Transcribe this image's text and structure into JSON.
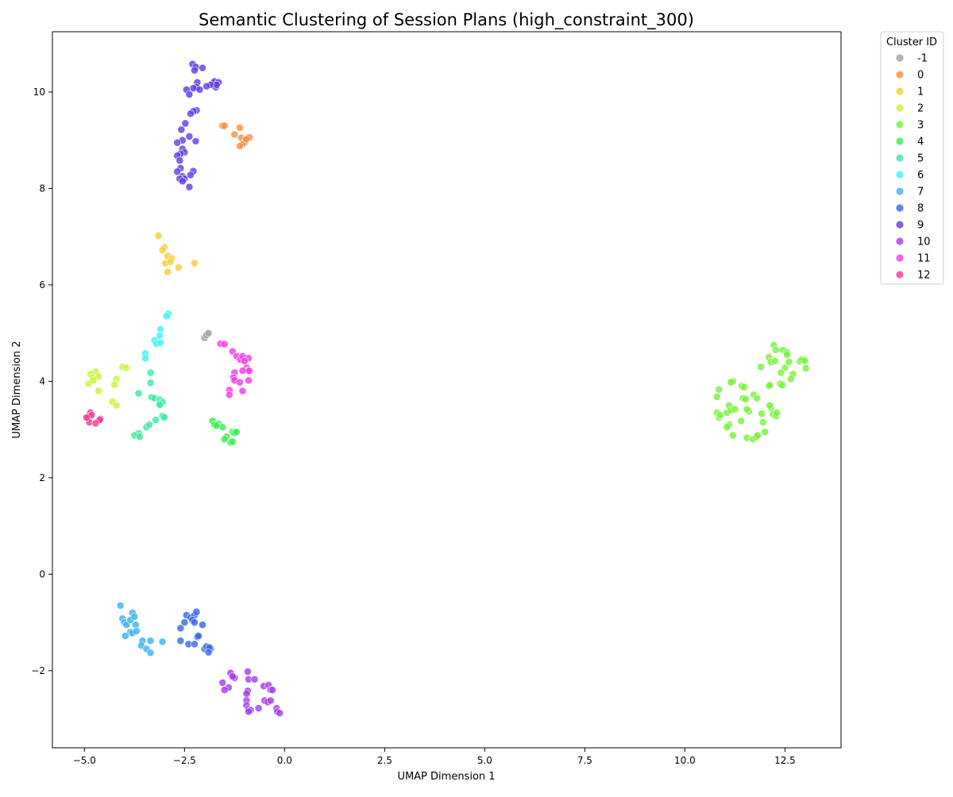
{
  "chart_data": {
    "type": "scatter",
    "title": "Semantic Clustering of Session Plans (high_constraint_300)",
    "xlabel": "UMAP Dimension 1",
    "ylabel": "UMAP Dimension 2",
    "xlim": [
      -5.8,
      13.9
    ],
    "ylim": [
      -3.6,
      11.25
    ],
    "x_ticks": [
      -5.0,
      -2.5,
      0.0,
      2.5,
      5.0,
      7.5,
      10.0,
      12.5
    ],
    "x_tick_labels": [
      "−5.0",
      "−2.5",
      "0.0",
      "2.5",
      "5.0",
      "7.5",
      "10.0",
      "12.5"
    ],
    "y_ticks": [
      -2,
      0,
      2,
      4,
      6,
      8,
      10
    ],
    "y_tick_labels": [
      "−2",
      "0",
      "2",
      "4",
      "6",
      "8",
      "10"
    ],
    "grid": false,
    "legend": {
      "title": "Cluster ID",
      "placement": "outside upper-right"
    },
    "series": [
      {
        "name": "-1",
        "color": "#a0a0a0",
        "points": [
          [
            -2.0,
            4.9
          ],
          [
            -1.95,
            4.96
          ],
          [
            -1.9,
            5.0
          ]
        ]
      },
      {
        "name": "0",
        "color": "#fb8c40",
        "points": [
          [
            -1.55,
            9.3
          ],
          [
            -1.5,
            9.3
          ],
          [
            -1.25,
            9.12
          ],
          [
            -1.12,
            9.26
          ],
          [
            -1.08,
            9.05
          ],
          [
            -1.0,
            8.95
          ],
          [
            -0.95,
            9.04
          ],
          [
            -0.88,
            9.06
          ],
          [
            -1.05,
            8.92
          ],
          [
            -1.12,
            8.88
          ],
          [
            -0.96,
            9.02
          ]
        ]
      },
      {
        "name": "1",
        "color": "#f5cc39",
        "points": [
          [
            -3.15,
            7.02
          ],
          [
            -3.0,
            6.78
          ],
          [
            -3.05,
            6.72
          ],
          [
            -2.92,
            6.6
          ],
          [
            -2.82,
            6.55
          ],
          [
            -2.98,
            6.45
          ],
          [
            -2.85,
            6.48
          ],
          [
            -2.65,
            6.36
          ],
          [
            -2.25,
            6.45
          ],
          [
            -2.92,
            6.27
          ]
        ]
      },
      {
        "name": "2",
        "color": "#c6f53a",
        "points": [
          [
            -4.72,
            4.2
          ],
          [
            -4.85,
            4.15
          ],
          [
            -4.8,
            4.08
          ],
          [
            -4.65,
            4.1
          ],
          [
            -4.9,
            3.95
          ],
          [
            -4.78,
            4.02
          ],
          [
            -4.05,
            4.3
          ],
          [
            -3.95,
            4.28
          ],
          [
            -4.2,
            4.05
          ],
          [
            -4.25,
            3.93
          ],
          [
            -4.65,
            3.8
          ],
          [
            -4.3,
            3.58
          ],
          [
            -4.2,
            3.5
          ]
        ]
      },
      {
        "name": "3",
        "color": "#75f23a",
        "points": [
          [
            12.22,
            4.75
          ],
          [
            12.27,
            4.65
          ],
          [
            12.45,
            4.65
          ],
          [
            12.55,
            4.6
          ],
          [
            12.1,
            4.5
          ],
          [
            12.15,
            4.4
          ],
          [
            12.25,
            4.42
          ],
          [
            12.55,
            4.55
          ],
          [
            12.6,
            4.4
          ],
          [
            12.5,
            4.28
          ],
          [
            11.9,
            4.3
          ],
          [
            12.87,
            4.42
          ],
          [
            12.93,
            4.45
          ],
          [
            13.0,
            4.43
          ],
          [
            13.02,
            4.27
          ],
          [
            12.7,
            4.15
          ],
          [
            12.65,
            4.05
          ],
          [
            12.4,
            4.18
          ],
          [
            11.2,
            4.0
          ],
          [
            11.15,
            3.98
          ],
          [
            11.42,
            3.9
          ],
          [
            11.48,
            3.88
          ],
          [
            12.1,
            3.9
          ],
          [
            12.12,
            3.92
          ],
          [
            12.38,
            3.95
          ],
          [
            12.43,
            3.92
          ],
          [
            10.85,
            3.83
          ],
          [
            10.8,
            3.68
          ],
          [
            11.1,
            3.5
          ],
          [
            11.05,
            3.35
          ],
          [
            11.15,
            3.4
          ],
          [
            11.25,
            3.42
          ],
          [
            11.45,
            3.65
          ],
          [
            11.52,
            3.63
          ],
          [
            11.72,
            3.72
          ],
          [
            11.8,
            3.65
          ],
          [
            11.6,
            3.38
          ],
          [
            11.55,
            3.42
          ],
          [
            12.15,
            3.45
          ],
          [
            12.12,
            3.5
          ],
          [
            12.2,
            3.32
          ],
          [
            12.28,
            3.28
          ],
          [
            12.3,
            3.35
          ],
          [
            11.92,
            3.33
          ],
          [
            10.8,
            3.35
          ],
          [
            10.85,
            3.25
          ],
          [
            10.88,
            3.3
          ],
          [
            11.4,
            3.18
          ],
          [
            11.95,
            3.15
          ],
          [
            11.1,
            3.1
          ],
          [
            11.05,
            3.05
          ],
          [
            12.0,
            2.95
          ],
          [
            11.2,
            2.88
          ],
          [
            11.55,
            2.83
          ],
          [
            11.7,
            2.8
          ],
          [
            11.78,
            2.85
          ],
          [
            11.82,
            2.88
          ]
        ]
      },
      {
        "name": "4",
        "color": "#3aeb4e",
        "points": [
          [
            -1.8,
            3.18
          ],
          [
            -1.75,
            3.1
          ],
          [
            -1.65,
            3.12
          ],
          [
            -1.55,
            3.05
          ],
          [
            -1.7,
            3.08
          ],
          [
            -1.3,
            2.95
          ],
          [
            -1.25,
            2.93
          ],
          [
            -1.2,
            2.95
          ],
          [
            -1.45,
            2.85
          ],
          [
            -1.5,
            2.8
          ],
          [
            -1.35,
            2.73
          ],
          [
            -1.3,
            2.75
          ]
        ]
      },
      {
        "name": "5",
        "color": "#3ae8a0",
        "points": [
          [
            -3.35,
            4.18
          ],
          [
            -3.35,
            3.97
          ],
          [
            -3.65,
            3.75
          ],
          [
            -3.32,
            3.67
          ],
          [
            -3.25,
            3.65
          ],
          [
            -3.12,
            3.62
          ],
          [
            -3.1,
            3.52
          ],
          [
            -3.05,
            3.57
          ],
          [
            -3.12,
            3.52
          ],
          [
            -3.05,
            3.28
          ],
          [
            -3.0,
            3.25
          ],
          [
            -3.22,
            3.2
          ],
          [
            -3.45,
            3.05
          ],
          [
            -3.38,
            3.1
          ],
          [
            -3.65,
            2.92
          ],
          [
            -3.75,
            2.88
          ],
          [
            -3.62,
            2.85
          ]
        ]
      },
      {
        "name": "6",
        "color": "#39f2f2",
        "points": [
          [
            -2.9,
            5.4
          ],
          [
            -2.95,
            5.35
          ],
          [
            -3.1,
            5.08
          ],
          [
            -3.12,
            4.95
          ],
          [
            -3.25,
            4.85
          ],
          [
            -3.2,
            4.78
          ],
          [
            -3.1,
            4.8
          ],
          [
            -3.48,
            4.58
          ],
          [
            -3.48,
            4.48
          ]
        ]
      },
      {
        "name": "7",
        "color": "#39b0f2",
        "points": [
          [
            -4.1,
            -0.65
          ],
          [
            -4.05,
            -0.92
          ],
          [
            -4.0,
            -1.0
          ],
          [
            -3.95,
            -1.05
          ],
          [
            -3.85,
            -0.95
          ],
          [
            -3.8,
            -0.8
          ],
          [
            -3.75,
            -0.88
          ],
          [
            -3.72,
            -1.05
          ],
          [
            -3.85,
            -1.2
          ],
          [
            -3.8,
            -1.22
          ],
          [
            -3.7,
            -1.18
          ],
          [
            -3.98,
            -1.28
          ],
          [
            -3.55,
            -1.38
          ],
          [
            -3.35,
            -1.38
          ],
          [
            -3.58,
            -1.48
          ],
          [
            -3.45,
            -1.55
          ],
          [
            -3.35,
            -1.63
          ],
          [
            -3.05,
            -1.4
          ]
        ]
      },
      {
        "name": "8",
        "color": "#3963f0",
        "points": [
          [
            -2.45,
            -0.85
          ],
          [
            -2.35,
            -0.9
          ],
          [
            -2.25,
            -0.85
          ],
          [
            -2.2,
            -0.78
          ],
          [
            -2.3,
            -0.95
          ],
          [
            -2.25,
            -1.0
          ],
          [
            -2.5,
            -1.0
          ],
          [
            -2.6,
            -1.12
          ],
          [
            -2.05,
            -1.05
          ],
          [
            -2.18,
            -1.3
          ],
          [
            -2.15,
            -1.28
          ],
          [
            -2.6,
            -1.38
          ],
          [
            -2.4,
            -1.45
          ],
          [
            -2.25,
            -1.45
          ],
          [
            -2.0,
            -1.55
          ],
          [
            -1.95,
            -1.5
          ],
          [
            -1.85,
            -1.55
          ],
          [
            -1.88,
            -1.52
          ],
          [
            -1.9,
            -1.62
          ]
        ]
      },
      {
        "name": "9",
        "color": "#6039e8",
        "points": [
          [
            -2.3,
            10.58
          ],
          [
            -2.22,
            10.52
          ],
          [
            -2.25,
            10.45
          ],
          [
            -2.05,
            10.5
          ],
          [
            -1.8,
            10.18
          ],
          [
            -1.75,
            10.22
          ],
          [
            -1.72,
            10.1
          ],
          [
            -1.65,
            10.2
          ],
          [
            -1.7,
            10.15
          ],
          [
            -1.85,
            10.15
          ],
          [
            -1.95,
            10.12
          ],
          [
            -2.18,
            10.2
          ],
          [
            -2.2,
            10.1
          ],
          [
            -2.28,
            10.08
          ],
          [
            -2.45,
            10.05
          ],
          [
            -2.12,
            10.05
          ],
          [
            -2.38,
            9.95
          ],
          [
            -2.2,
            9.62
          ],
          [
            -2.28,
            9.6
          ],
          [
            -2.35,
            9.55
          ],
          [
            -2.48,
            9.35
          ],
          [
            -2.58,
            9.22
          ],
          [
            -2.38,
            9.08
          ],
          [
            -2.55,
            9.0
          ],
          [
            -2.68,
            8.95
          ],
          [
            -2.22,
            8.98
          ],
          [
            -2.55,
            8.82
          ],
          [
            -2.5,
            8.75
          ],
          [
            -2.6,
            8.72
          ],
          [
            -2.68,
            8.68
          ],
          [
            -2.62,
            8.58
          ],
          [
            -2.6,
            8.42
          ],
          [
            -2.68,
            8.35
          ],
          [
            -2.28,
            8.36
          ],
          [
            -2.35,
            8.28
          ],
          [
            -2.55,
            8.25
          ],
          [
            -2.5,
            8.2
          ],
          [
            -2.62,
            8.2
          ],
          [
            -2.55,
            8.15
          ],
          [
            -2.38,
            8.03
          ]
        ]
      },
      {
        "name": "10",
        "color": "#a639e8",
        "points": [
          [
            -1.35,
            -2.05
          ],
          [
            -1.25,
            -2.15
          ],
          [
            -1.3,
            -2.12
          ],
          [
            -0.92,
            -2.02
          ],
          [
            -0.9,
            -2.18
          ],
          [
            -0.75,
            -2.18
          ],
          [
            -1.55,
            -2.25
          ],
          [
            -1.4,
            -2.35
          ],
          [
            -1.5,
            -2.4
          ],
          [
            -0.52,
            -2.32
          ],
          [
            -0.4,
            -2.3
          ],
          [
            -0.35,
            -2.4
          ],
          [
            -0.3,
            -2.4
          ],
          [
            -0.92,
            -2.42
          ],
          [
            -0.95,
            -2.48
          ],
          [
            -0.95,
            -2.62
          ],
          [
            -0.5,
            -2.62
          ],
          [
            -0.42,
            -2.65
          ],
          [
            -0.35,
            -2.62
          ],
          [
            -0.95,
            -2.72
          ],
          [
            -0.65,
            -2.78
          ],
          [
            -0.9,
            -2.8
          ],
          [
            -0.85,
            -2.82
          ],
          [
            -0.2,
            -2.78
          ],
          [
            -0.18,
            -2.85
          ],
          [
            -0.12,
            -2.88
          ],
          [
            -0.9,
            -2.85
          ]
        ]
      },
      {
        "name": "11",
        "color": "#f23ae8",
        "points": [
          [
            -1.6,
            4.78
          ],
          [
            -1.5,
            4.77
          ],
          [
            -1.3,
            4.62
          ],
          [
            -1.2,
            4.52
          ],
          [
            -1.1,
            4.45
          ],
          [
            -1.05,
            4.52
          ],
          [
            -0.9,
            4.48
          ],
          [
            -1.0,
            4.42
          ],
          [
            -0.95,
            4.28
          ],
          [
            -0.92,
            4.22
          ],
          [
            -0.88,
            4.22
          ],
          [
            -1.05,
            4.22
          ],
          [
            -1.25,
            4.18
          ],
          [
            -1.28,
            4.08
          ],
          [
            -1.25,
            4.02
          ],
          [
            -1.12,
            3.98
          ],
          [
            -0.9,
            4.02
          ],
          [
            -1.38,
            3.82
          ],
          [
            -1.05,
            3.8
          ],
          [
            -1.38,
            3.72
          ]
        ]
      },
      {
        "name": "12",
        "color": "#f23a8f",
        "points": [
          [
            -4.9,
            3.25
          ],
          [
            -4.85,
            3.35
          ],
          [
            -4.82,
            3.3
          ],
          [
            -4.6,
            3.22
          ],
          [
            -4.62,
            3.2
          ],
          [
            -4.88,
            3.15
          ],
          [
            -4.72,
            3.13
          ],
          [
            -4.95,
            3.25
          ]
        ]
      }
    ]
  }
}
